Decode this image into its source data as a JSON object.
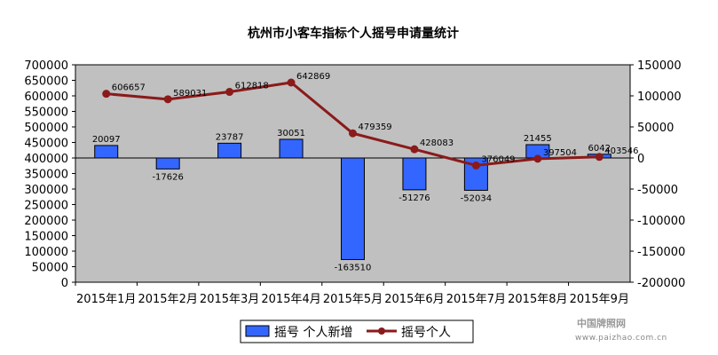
{
  "chart_data": {
    "type": "bar+line",
    "title": "杭州市小客车指标个人摇号申请量统计",
    "categories": [
      "2015年1月",
      "2015年2月",
      "2015年3月",
      "2015年4月",
      "2015年5月",
      "2015年6月",
      "2015年7月",
      "2015年8月",
      "2015年9月"
    ],
    "series": [
      {
        "name": "摇号 个人新增",
        "type": "bar",
        "axis": "right",
        "values": [
          20097,
          -17626,
          23787,
          30051,
          -163510,
          -51276,
          -52034,
          21455,
          6042
        ],
        "labels": [
          "20097",
          "-17626",
          "23787",
          "30051",
          "-163510",
          "-51276",
          "-52034",
          "21455",
          "6042"
        ],
        "color": "#3366ff"
      },
      {
        "name": "摇号个人",
        "type": "line",
        "axis": "left",
        "values": [
          606657,
          589031,
          612818,
          642869,
          479359,
          428083,
          376049,
          397504,
          403546
        ],
        "color": "#8b1a1a"
      }
    ],
    "y_left": {
      "min": 0,
      "max": 700000,
      "step": 50000,
      "ticks": [
        "0",
        "50000",
        "100000",
        "150000",
        "200000",
        "250000",
        "300000",
        "350000",
        "400000",
        "450000",
        "500000",
        "550000",
        "600000",
        "650000",
        "700000"
      ]
    },
    "y_right": {
      "min": -200000,
      "max": 150000,
      "step": 50000,
      "ticks": [
        "-200000",
        "-150000",
        "-100000",
        "-50000",
        "0",
        "50000",
        "100000",
        "150000"
      ]
    },
    "plot_background": "#c0c0c0",
    "grid": false,
    "legend_position": "bottom"
  },
  "watermark": {
    "line1": "中国牌照网",
    "line2": "www.paizhao.com.cn"
  }
}
